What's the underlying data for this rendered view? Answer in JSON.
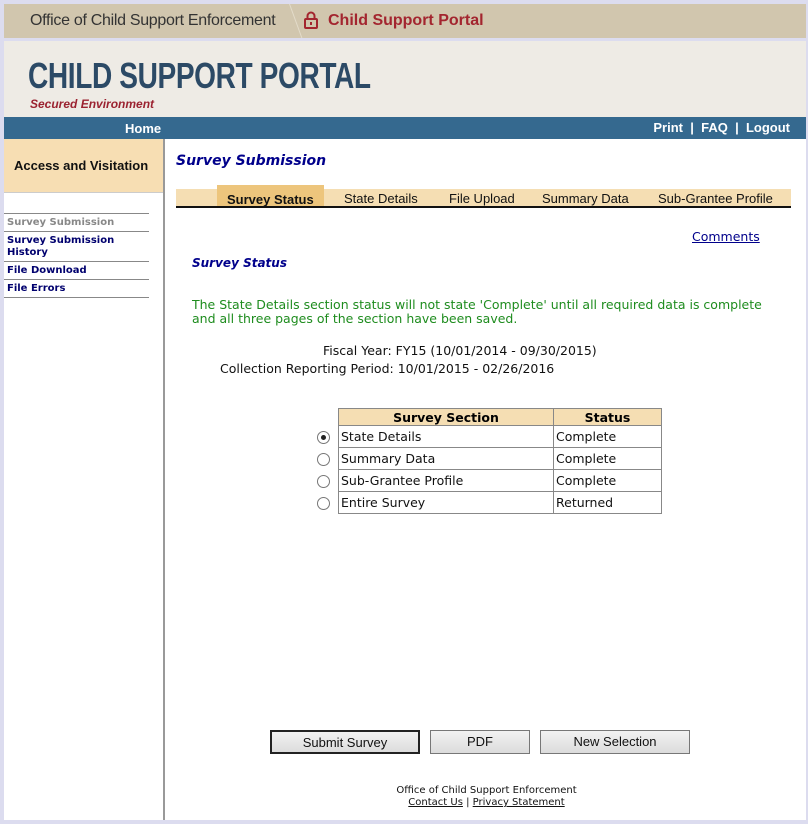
{
  "topbar": {
    "agency": "Office of Child Support Enforcement",
    "portal": "Child Support Portal"
  },
  "header": {
    "logo": "CHILD SUPPORT PORTAL",
    "subtitle": "Secured Environment"
  },
  "nav": {
    "home": "Home",
    "print": "Print",
    "faq": "FAQ",
    "logout": "Logout",
    "separator": "|"
  },
  "sidebar": {
    "title": "Access and Visitation",
    "items": [
      {
        "label": "Survey Submission",
        "current": true
      },
      {
        "label": "Survey Submission History"
      },
      {
        "label": "File Download"
      },
      {
        "label": "File Errors"
      }
    ]
  },
  "main": {
    "title": "Survey Submission",
    "tabs": [
      {
        "label": "Survey Status",
        "active": true
      },
      {
        "label": "State Details"
      },
      {
        "label": "File Upload"
      },
      {
        "label": "Summary Data"
      },
      {
        "label": "Sub-Grantee Profile"
      }
    ],
    "comments": "Comments",
    "section_title": "Survey Status",
    "message": "The State Details section status will not state 'Complete' until all required data is complete and all three pages of the section have been saved.",
    "fiscal_year": "Fiscal Year: FY15 (10/01/2014 - 09/30/2015)",
    "collection_period": "Collection Reporting Period: 10/01/2015 - 02/26/2016",
    "table": {
      "headers": [
        "Survey Section",
        "Status"
      ],
      "rows": [
        {
          "section": "State Details",
          "status": "Complete",
          "selected": true
        },
        {
          "section": "Summary Data",
          "status": "Complete"
        },
        {
          "section": "Sub-Grantee Profile",
          "status": "Complete"
        },
        {
          "section": "Entire Survey",
          "status": "Returned"
        }
      ]
    },
    "buttons": {
      "submit": "Submit Survey",
      "pdf": "PDF",
      "new_selection": "New Selection"
    }
  },
  "footer": {
    "org": "Office of Child Support Enforcement",
    "contact": "Contact Us",
    "separator": "|",
    "privacy": "Privacy Statement"
  },
  "colors": {
    "nav": "#35698f",
    "tab_bg": "#f5deb3",
    "tab_active": "#edc57c",
    "message": "#1e8c1e",
    "title": "#00008b",
    "portal_red": "#a3252f"
  }
}
